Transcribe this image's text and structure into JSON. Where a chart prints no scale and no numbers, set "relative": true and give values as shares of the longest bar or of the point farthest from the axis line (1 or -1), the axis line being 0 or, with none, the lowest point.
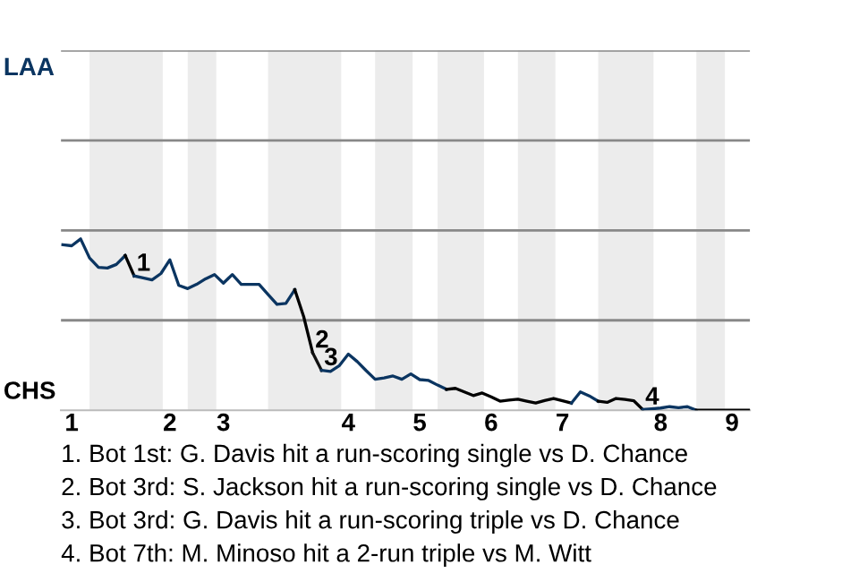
{
  "chart_data": {
    "type": "line",
    "relative": true,
    "marker": "none",
    "line_style": "solid",
    "ref_lines": [
      {
        "axis": "y",
        "value": 0.525,
        "color": "#888888"
      },
      {
        "axis": "y",
        "value": 1.05,
        "color": "#888888"
      },
      {
        "axis": "y",
        "value": 1.575,
        "color": "#888888"
      },
      {
        "axis": "y",
        "value": 2.1,
        "color": "#888888"
      }
    ],
    "categories": [
      null,
      "1",
      null,
      null,
      null,
      null,
      null,
      null,
      null,
      null,
      null,
      null,
      "2",
      null,
      null,
      null,
      null,
      null,
      "3",
      null,
      null,
      null,
      null,
      null,
      null,
      null,
      null,
      null,
      null,
      null,
      null,
      null,
      "4",
      null,
      null,
      null,
      null,
      null,
      null,
      null,
      "5",
      null,
      null,
      null,
      null,
      null,
      null,
      null,
      "6",
      null,
      null,
      null,
      null,
      null,
      null,
      null,
      "7",
      null,
      null,
      null,
      null,
      null,
      null,
      null,
      null,
      null,
      null,
      "8",
      null,
      null,
      null,
      null,
      null,
      null,
      null,
      "9",
      null,
      null
    ],
    "series": [
      {
        "color": "#0b3561",
        "values": [
          0.966,
          0.96,
          1,
          0.889,
          0.834,
          0.83,
          0.851,
          0.903,
          null,
          null,
          null,
          null,
          null,
          null,
          null,
          null,
          null,
          null,
          null,
          null,
          null,
          null,
          null,
          null,
          null,
          null,
          null,
          null,
          null,
          null,
          null,
          null,
          null,
          null,
          null,
          null,
          null,
          null,
          null,
          null,
          null,
          null,
          null,
          null,
          null,
          null,
          null,
          null,
          null,
          null,
          null,
          null,
          null,
          null,
          null,
          null,
          null,
          null,
          null,
          null,
          null,
          null,
          null,
          null,
          null,
          null,
          null,
          null,
          null,
          null,
          null,
          null,
          null,
          null,
          null,
          null,
          null,
          null
        ]
      },
      {
        "name": "1",
        "color": "#000000",
        "values": [
          null,
          null,
          null,
          null,
          null,
          null,
          null,
          0.903,
          0.784,
          null,
          null,
          null,
          null,
          null,
          null,
          null,
          null,
          null,
          null,
          null,
          null,
          null,
          null,
          null,
          null,
          null,
          null,
          null,
          null,
          null,
          null,
          null,
          null,
          null,
          null,
          null,
          null,
          null,
          null,
          null,
          null,
          null,
          null,
          null,
          null,
          null,
          null,
          null,
          null,
          null,
          null,
          null,
          null,
          null,
          null,
          null,
          null,
          null,
          null,
          null,
          null,
          null,
          null,
          null,
          null,
          null,
          null,
          null,
          null,
          null,
          null,
          null,
          null,
          null,
          null,
          null,
          null,
          null
        ]
      },
      {
        "color": "#0b3561",
        "values": [
          null,
          null,
          null,
          null,
          null,
          null,
          null,
          null,
          0.784,
          0.773,
          0.761,
          0.798,
          0.878,
          0.729,
          0.71,
          0.735,
          0.767,
          0.792,
          0.742,
          0.792,
          0.735,
          0.735,
          0.735,
          0.676,
          0.618,
          0.624,
          0.704,
          null,
          null,
          null,
          null,
          null,
          null,
          null,
          null,
          null,
          null,
          null,
          null,
          null,
          null,
          null,
          null,
          null,
          null,
          null,
          null,
          null,
          null,
          null,
          null,
          null,
          null,
          null,
          null,
          null,
          null,
          null,
          null,
          null,
          null,
          null,
          null,
          null,
          null,
          null,
          null,
          null,
          null,
          null,
          null,
          null,
          null,
          null,
          null,
          null,
          null,
          null
        ]
      },
      {
        "name": "2",
        "color": "#000000",
        "values": [
          null,
          null,
          null,
          null,
          null,
          null,
          null,
          null,
          null,
          null,
          null,
          null,
          null,
          null,
          null,
          null,
          null,
          null,
          null,
          null,
          null,
          null,
          null,
          null,
          null,
          null,
          0.704,
          0.546,
          0.336,
          null,
          null,
          null,
          null,
          null,
          null,
          null,
          null,
          null,
          null,
          null,
          null,
          null,
          null,
          null,
          null,
          null,
          null,
          null,
          null,
          null,
          null,
          null,
          null,
          null,
          null,
          null,
          null,
          null,
          null,
          null,
          null,
          null,
          null,
          null,
          null,
          null,
          null,
          null,
          null,
          null,
          null,
          null,
          null,
          null,
          null,
          null,
          null,
          null
        ]
      },
      {
        "name": "3",
        "color": "#111111",
        "values": [
          null,
          null,
          null,
          null,
          null,
          null,
          null,
          null,
          null,
          null,
          null,
          null,
          null,
          null,
          null,
          null,
          null,
          null,
          null,
          null,
          null,
          null,
          null,
          null,
          null,
          null,
          null,
          null,
          0.336,
          0.233,
          null,
          null,
          null,
          null,
          null,
          null,
          null,
          null,
          null,
          null,
          null,
          null,
          null,
          null,
          null,
          null,
          null,
          null,
          null,
          null,
          null,
          null,
          null,
          null,
          null,
          null,
          null,
          null,
          null,
          null,
          null,
          null,
          null,
          null,
          null,
          null,
          null,
          null,
          null,
          null,
          null,
          null,
          null,
          null,
          null,
          null,
          null,
          null
        ]
      },
      {
        "color": "#0b3561",
        "values": [
          null,
          null,
          null,
          null,
          null,
          null,
          null,
          null,
          null,
          null,
          null,
          null,
          null,
          null,
          null,
          null,
          null,
          null,
          null,
          null,
          null,
          null,
          null,
          null,
          null,
          null,
          null,
          null,
          null,
          0.233,
          0.227,
          0.261,
          0.328,
          0.284,
          0.231,
          0.181,
          0.189,
          0.2,
          0.181,
          0.212,
          0.179,
          0.174,
          0.147,
          0.122,
          null,
          null,
          null,
          null,
          null,
          null,
          null,
          null,
          null,
          null,
          null,
          null,
          null,
          null,
          null,
          null,
          null,
          null,
          null,
          null,
          null,
          null,
          null,
          null,
          null,
          null,
          null,
          null,
          null,
          null,
          null,
          null,
          null,
          null
        ]
      },
      {
        "color": "#000000",
        "values": [
          null,
          null,
          null,
          null,
          null,
          null,
          null,
          null,
          null,
          null,
          null,
          null,
          null,
          null,
          null,
          null,
          null,
          null,
          null,
          null,
          null,
          null,
          null,
          null,
          null,
          null,
          null,
          null,
          null,
          null,
          null,
          null,
          null,
          null,
          null,
          null,
          null,
          null,
          null,
          null,
          null,
          null,
          null,
          0.122,
          0.128,
          0.107,
          0.086,
          0.101,
          0.078,
          0.053,
          0.059,
          0.065,
          0.053,
          0.042,
          0.057,
          0.069,
          0.055,
          0.042,
          null,
          null,
          null,
          null,
          null,
          null,
          null,
          null,
          null,
          null,
          null,
          null,
          null,
          null,
          null,
          null,
          null,
          null,
          null,
          null
        ]
      },
      {
        "color": "#0b3561",
        "values": [
          null,
          null,
          null,
          null,
          null,
          null,
          null,
          null,
          null,
          null,
          null,
          null,
          null,
          null,
          null,
          null,
          null,
          null,
          null,
          null,
          null,
          null,
          null,
          null,
          null,
          null,
          null,
          null,
          null,
          null,
          null,
          null,
          null,
          null,
          null,
          null,
          null,
          null,
          null,
          null,
          null,
          null,
          null,
          null,
          null,
          null,
          null,
          null,
          null,
          null,
          null,
          null,
          null,
          null,
          null,
          null,
          null,
          0.042,
          0.107,
          0.084,
          0.053,
          null,
          null,
          null,
          null,
          null,
          null,
          null,
          null,
          null,
          null,
          null,
          null,
          null,
          null,
          null,
          null,
          null
        ]
      },
      {
        "name": "4",
        "color": "#000000",
        "values": [
          null,
          null,
          null,
          null,
          null,
          null,
          null,
          null,
          null,
          null,
          null,
          null,
          null,
          null,
          null,
          null,
          null,
          null,
          null,
          null,
          null,
          null,
          null,
          null,
          null,
          null,
          null,
          null,
          null,
          null,
          null,
          null,
          null,
          null,
          null,
          null,
          null,
          null,
          null,
          null,
          null,
          null,
          null,
          null,
          null,
          null,
          null,
          null,
          null,
          null,
          null,
          null,
          null,
          null,
          null,
          null,
          null,
          null,
          null,
          null,
          0.053,
          0.046,
          0.069,
          0.063,
          0.055,
          0.004,
          null,
          null,
          null,
          null,
          null,
          null,
          null,
          null,
          null,
          null,
          null,
          null
        ]
      },
      {
        "color": "#0b3561",
        "values": [
          null,
          null,
          null,
          null,
          null,
          null,
          null,
          null,
          null,
          null,
          null,
          null,
          null,
          null,
          null,
          null,
          null,
          null,
          null,
          null,
          null,
          null,
          null,
          null,
          null,
          null,
          null,
          null,
          null,
          null,
          null,
          null,
          null,
          null,
          null,
          null,
          null,
          null,
          null,
          null,
          null,
          null,
          null,
          null,
          null,
          null,
          null,
          null,
          null,
          null,
          null,
          null,
          null,
          null,
          null,
          null,
          null,
          null,
          null,
          null,
          null,
          null,
          null,
          null,
          null,
          0.004,
          0.008,
          0.013,
          0.021,
          0.015,
          0.021,
          0,
          null,
          null,
          null,
          null,
          null,
          null
        ]
      },
      {
        "color": "#000000",
        "values": [
          null,
          null,
          null,
          null,
          null,
          null,
          null,
          null,
          null,
          null,
          null,
          null,
          null,
          null,
          null,
          null,
          null,
          null,
          null,
          null,
          null,
          null,
          null,
          null,
          null,
          null,
          null,
          null,
          null,
          null,
          null,
          null,
          null,
          null,
          null,
          null,
          null,
          null,
          null,
          null,
          null,
          null,
          null,
          null,
          null,
          null,
          null,
          null,
          null,
          null,
          null,
          null,
          null,
          null,
          null,
          null,
          null,
          null,
          null,
          null,
          null,
          null,
          null,
          null,
          null,
          null,
          null,
          null,
          null,
          null,
          null,
          0,
          0,
          0,
          0,
          0,
          0,
          0
        ]
      }
    ],
    "annotations": [
      "LAA",
      "CHS",
      "1. Bot 1st: G. Davis hit a run-scoring single vs D. Chance",
      "2. Bot 3rd: S. Jackson hit a run-scoring single vs D. Chance",
      "3. Bot 3rd: G. Davis hit a run-scoring triple vs D. Chance",
      "4. Bot 7th: M. Minoso hit a 2-run triple vs M. Witt"
    ]
  }
}
